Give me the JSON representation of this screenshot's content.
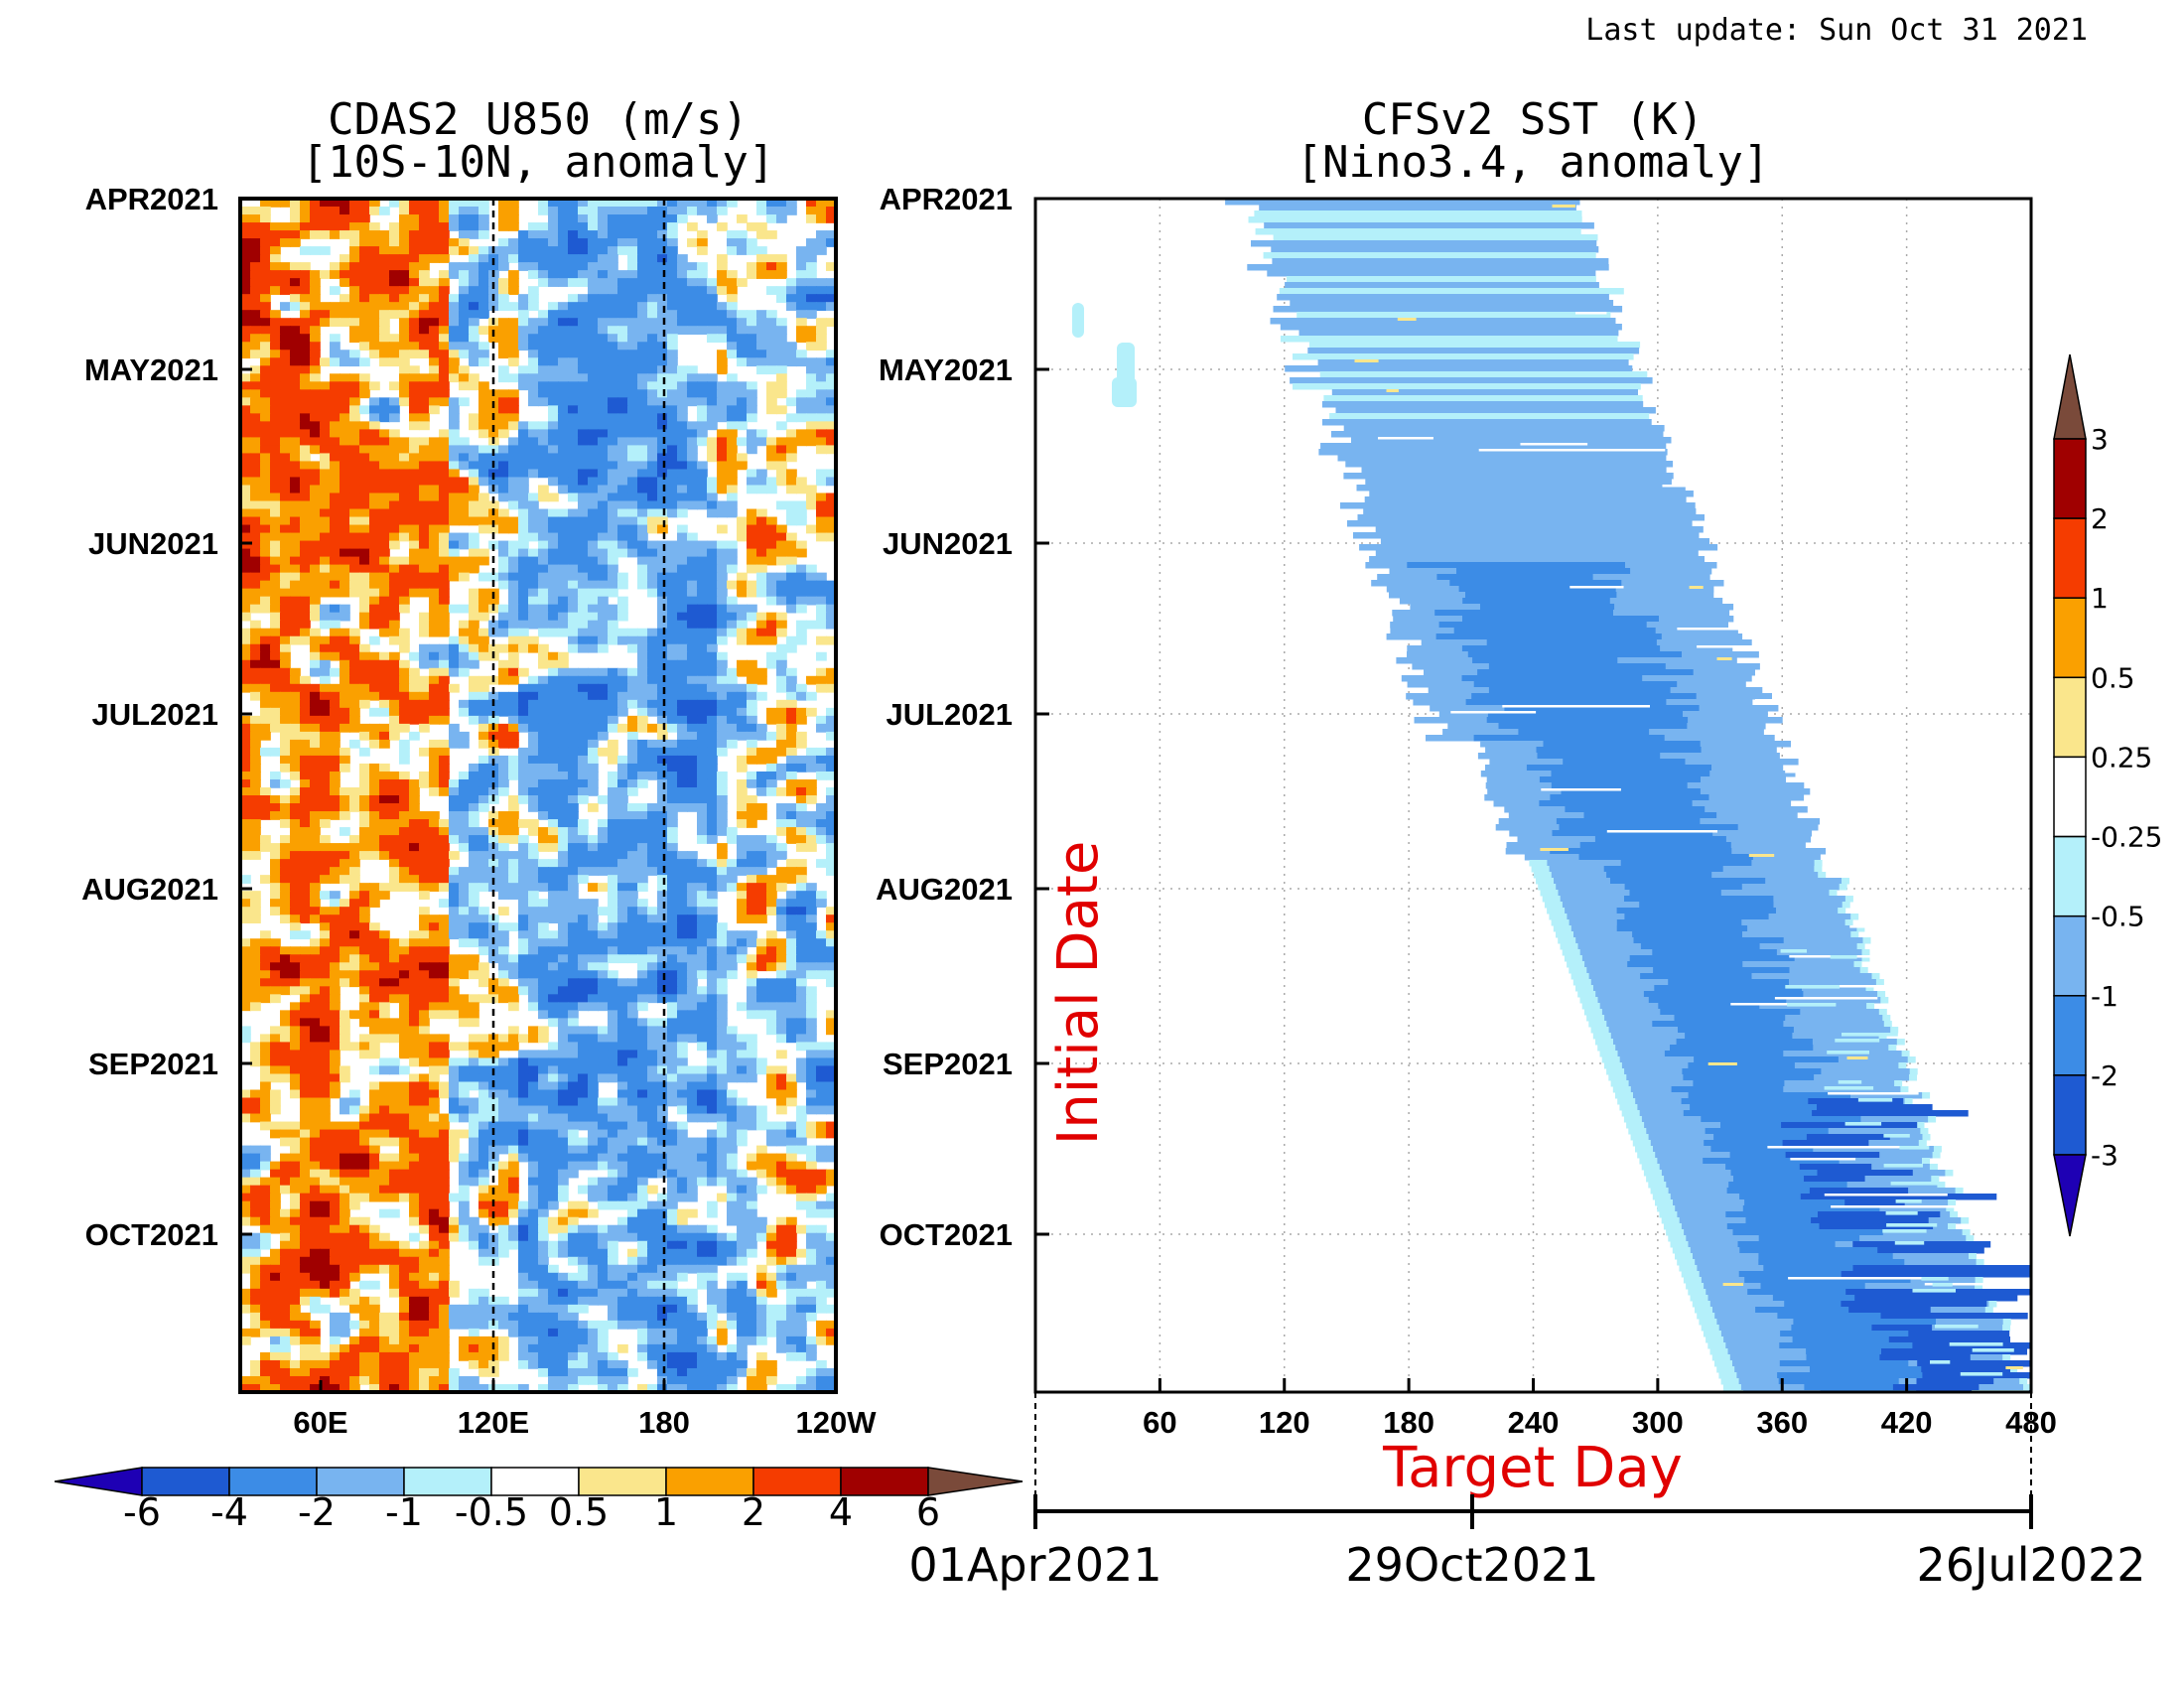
{
  "header": {
    "last_update": "Last update: Sun Oct 31 2021"
  },
  "chart_data": [
    {
      "type": "heatmap",
      "title_line1": "CDAS2 U850 (m/s)",
      "title_line2": "[10S-10N, anomaly]",
      "x_ticks": [
        "60E",
        "120E",
        "180",
        "120W"
      ],
      "y_ticks": [
        "APR2021",
        "MAY2021",
        "JUN2021",
        "JUL2021",
        "AUG2021",
        "SEP2021",
        "OCT2021"
      ],
      "reference_lines": [
        "120E",
        "180"
      ],
      "colorbar": {
        "orientation": "horizontal",
        "levels": [
          "-6",
          "-4",
          "-2",
          "-1",
          "-0.5",
          "0.5",
          "1",
          "2",
          "4",
          "6"
        ],
        "colors": [
          "#1e00b4",
          "#1e5ad2",
          "#3c8ce6",
          "#78b4f0",
          "#b4f0fa",
          "#ffffff",
          "#fae68c",
          "#faa000",
          "#f53c00",
          "#a00000",
          "#7a4a3a"
        ]
      }
    },
    {
      "type": "heatmap",
      "title_line1": "CFSv2 SST (K)",
      "title_line2": "[Nino3.4, anomaly]",
      "xlabel": "Target Day",
      "ylabel": "Initial Date",
      "x_ticks": [
        "60",
        "120",
        "180",
        "240",
        "300",
        "360",
        "420",
        "480"
      ],
      "xlim": [
        0,
        480
      ],
      "y_ticks": [
        "APR2021",
        "MAY2021",
        "JUN2021",
        "JUL2021",
        "AUG2021",
        "SEP2021",
        "OCT2021"
      ],
      "date_axis": {
        "labels": [
          "01Apr2021",
          "29Oct2021",
          "26Jul2022"
        ],
        "days": [
          0,
          211,
          481
        ]
      },
      "colorbar": {
        "orientation": "vertical",
        "levels": [
          "-3",
          "-2",
          "-1",
          "-0.5",
          "-0.25",
          "0.25",
          "0.5",
          "1",
          "2",
          "3"
        ],
        "colors": [
          "#1e00b4",
          "#1e5ad2",
          "#3c8ce6",
          "#78b4f0",
          "#b4f0fa",
          "#ffffff",
          "#fae68c",
          "#faa000",
          "#f53c00",
          "#a00000",
          "#7a4a3a"
        ]
      }
    }
  ]
}
